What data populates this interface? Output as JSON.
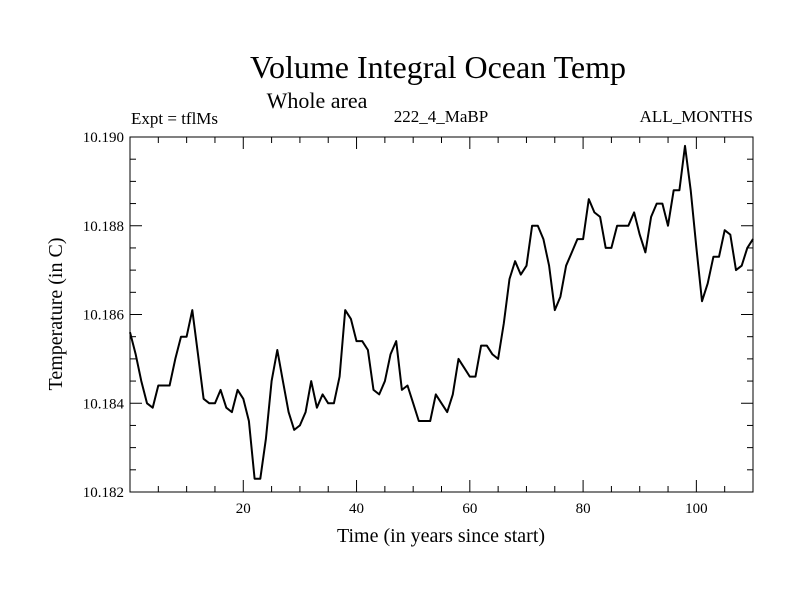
{
  "chart_data": {
    "type": "line",
    "title": "Volume Integral Ocean Temp",
    "subtitle": "Whole area",
    "left_label": "Expt = tflMs",
    "center_label": "222_4_MaBP",
    "right_label": "ALL_MONTHS",
    "xlabel": "Time (in years since start)",
    "ylabel": "Temperature (in C)",
    "xlim": [
      0,
      110
    ],
    "ylim": [
      10.182,
      10.19
    ],
    "x_ticks": [
      20,
      40,
      60,
      80,
      100
    ],
    "x_tick_labels": [
      "20",
      "40",
      "60",
      "80",
      "100"
    ],
    "y_ticks": [
      10.182,
      10.184,
      10.186,
      10.188,
      10.19
    ],
    "y_tick_labels": [
      "10.182",
      "10.184",
      "10.186",
      "10.188",
      "10.190"
    ],
    "line_color": "#000000",
    "series": [
      {
        "name": "Volume Integral Ocean Temp",
        "x": [
          0,
          1,
          2,
          3,
          4,
          5,
          6,
          7,
          8,
          9,
          10,
          11,
          12,
          13,
          14,
          15,
          16,
          17,
          18,
          19,
          20,
          21,
          22,
          23,
          24,
          25,
          26,
          27,
          28,
          29,
          30,
          31,
          32,
          33,
          34,
          35,
          36,
          37,
          38,
          39,
          40,
          41,
          42,
          43,
          44,
          45,
          46,
          47,
          48,
          49,
          50,
          51,
          52,
          53,
          54,
          55,
          56,
          57,
          58,
          59,
          60,
          61,
          62,
          63,
          64,
          65,
          66,
          67,
          68,
          69,
          70,
          71,
          72,
          73,
          74,
          75,
          76,
          77,
          78,
          79,
          80,
          81,
          82,
          83,
          84,
          85,
          86,
          87,
          88,
          89,
          90,
          91,
          92,
          93,
          94,
          95,
          96,
          97,
          98,
          99,
          100,
          101,
          102,
          103,
          104,
          105,
          106,
          107,
          108,
          109,
          110
        ],
        "values": [
          10.1856,
          10.1851,
          10.1845,
          10.184,
          10.1839,
          10.1844,
          10.1844,
          10.1844,
          10.185,
          10.1855,
          10.1855,
          10.1861,
          10.1851,
          10.1841,
          10.184,
          10.184,
          10.1843,
          10.1839,
          10.1838,
          10.1843,
          10.1841,
          10.1836,
          10.1823,
          10.1823,
          10.1832,
          10.1845,
          10.1852,
          10.1845,
          10.1838,
          10.1834,
          10.1835,
          10.1838,
          10.1845,
          10.1839,
          10.1842,
          10.184,
          10.184,
          10.1846,
          10.1861,
          10.1859,
          10.1854,
          10.1854,
          10.1852,
          10.1843,
          10.1842,
          10.1845,
          10.1851,
          10.1854,
          10.1843,
          10.1844,
          10.184,
          10.1836,
          10.1836,
          10.1836,
          10.1842,
          10.184,
          10.1838,
          10.1842,
          10.185,
          10.1848,
          10.1846,
          10.1846,
          10.1853,
          10.1853,
          10.1851,
          10.185,
          10.1858,
          10.1868,
          10.1872,
          10.1869,
          10.1871,
          10.188,
          10.188,
          10.1877,
          10.1871,
          10.1861,
          10.1864,
          10.1871,
          10.1874,
          10.1877,
          10.1877,
          10.1886,
          10.1883,
          10.1882,
          10.1875,
          10.1875,
          10.188,
          10.188,
          10.188,
          10.1883,
          10.1878,
          10.1874,
          10.1882,
          10.1885,
          10.1885,
          10.188,
          10.1888,
          10.1888,
          10.1898,
          10.1888,
          10.1875,
          10.1863,
          10.1867,
          10.1873,
          10.1873,
          10.1879,
          10.1878,
          10.187,
          10.1871,
          10.1875,
          10.1877
        ]
      }
    ]
  }
}
